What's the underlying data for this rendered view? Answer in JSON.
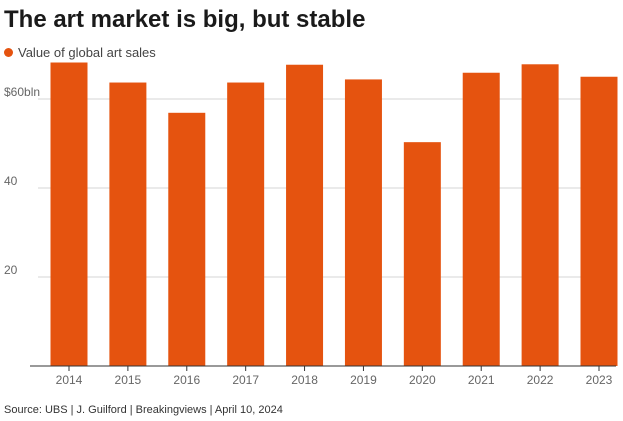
{
  "title": "The art market is big, but stable",
  "legend": {
    "label": "Value of global art sales"
  },
  "source": "Source: UBS | J. Guilford | Breakingviews | April 10, 2024",
  "colors": {
    "bar": "#e5530f",
    "grid": "#d6d6d6",
    "axis_text": "#666666"
  },
  "chart_data": {
    "type": "bar",
    "categories": [
      "2014",
      "2015",
      "2016",
      "2017",
      "2018",
      "2019",
      "2020",
      "2021",
      "2022",
      "2023"
    ],
    "series": [
      {
        "name": "Value of global art sales",
        "values": [
          68.2,
          63.7,
          56.9,
          63.7,
          67.7,
          64.4,
          50.3,
          65.9,
          67.8,
          65.0
        ]
      }
    ],
    "y_ticks": [
      20,
      40,
      60
    ],
    "y_tick_labels": [
      "20",
      "40",
      "$60bln"
    ],
    "ylim": [
      0,
      70
    ],
    "grid": true,
    "legend_position": "top-left"
  }
}
